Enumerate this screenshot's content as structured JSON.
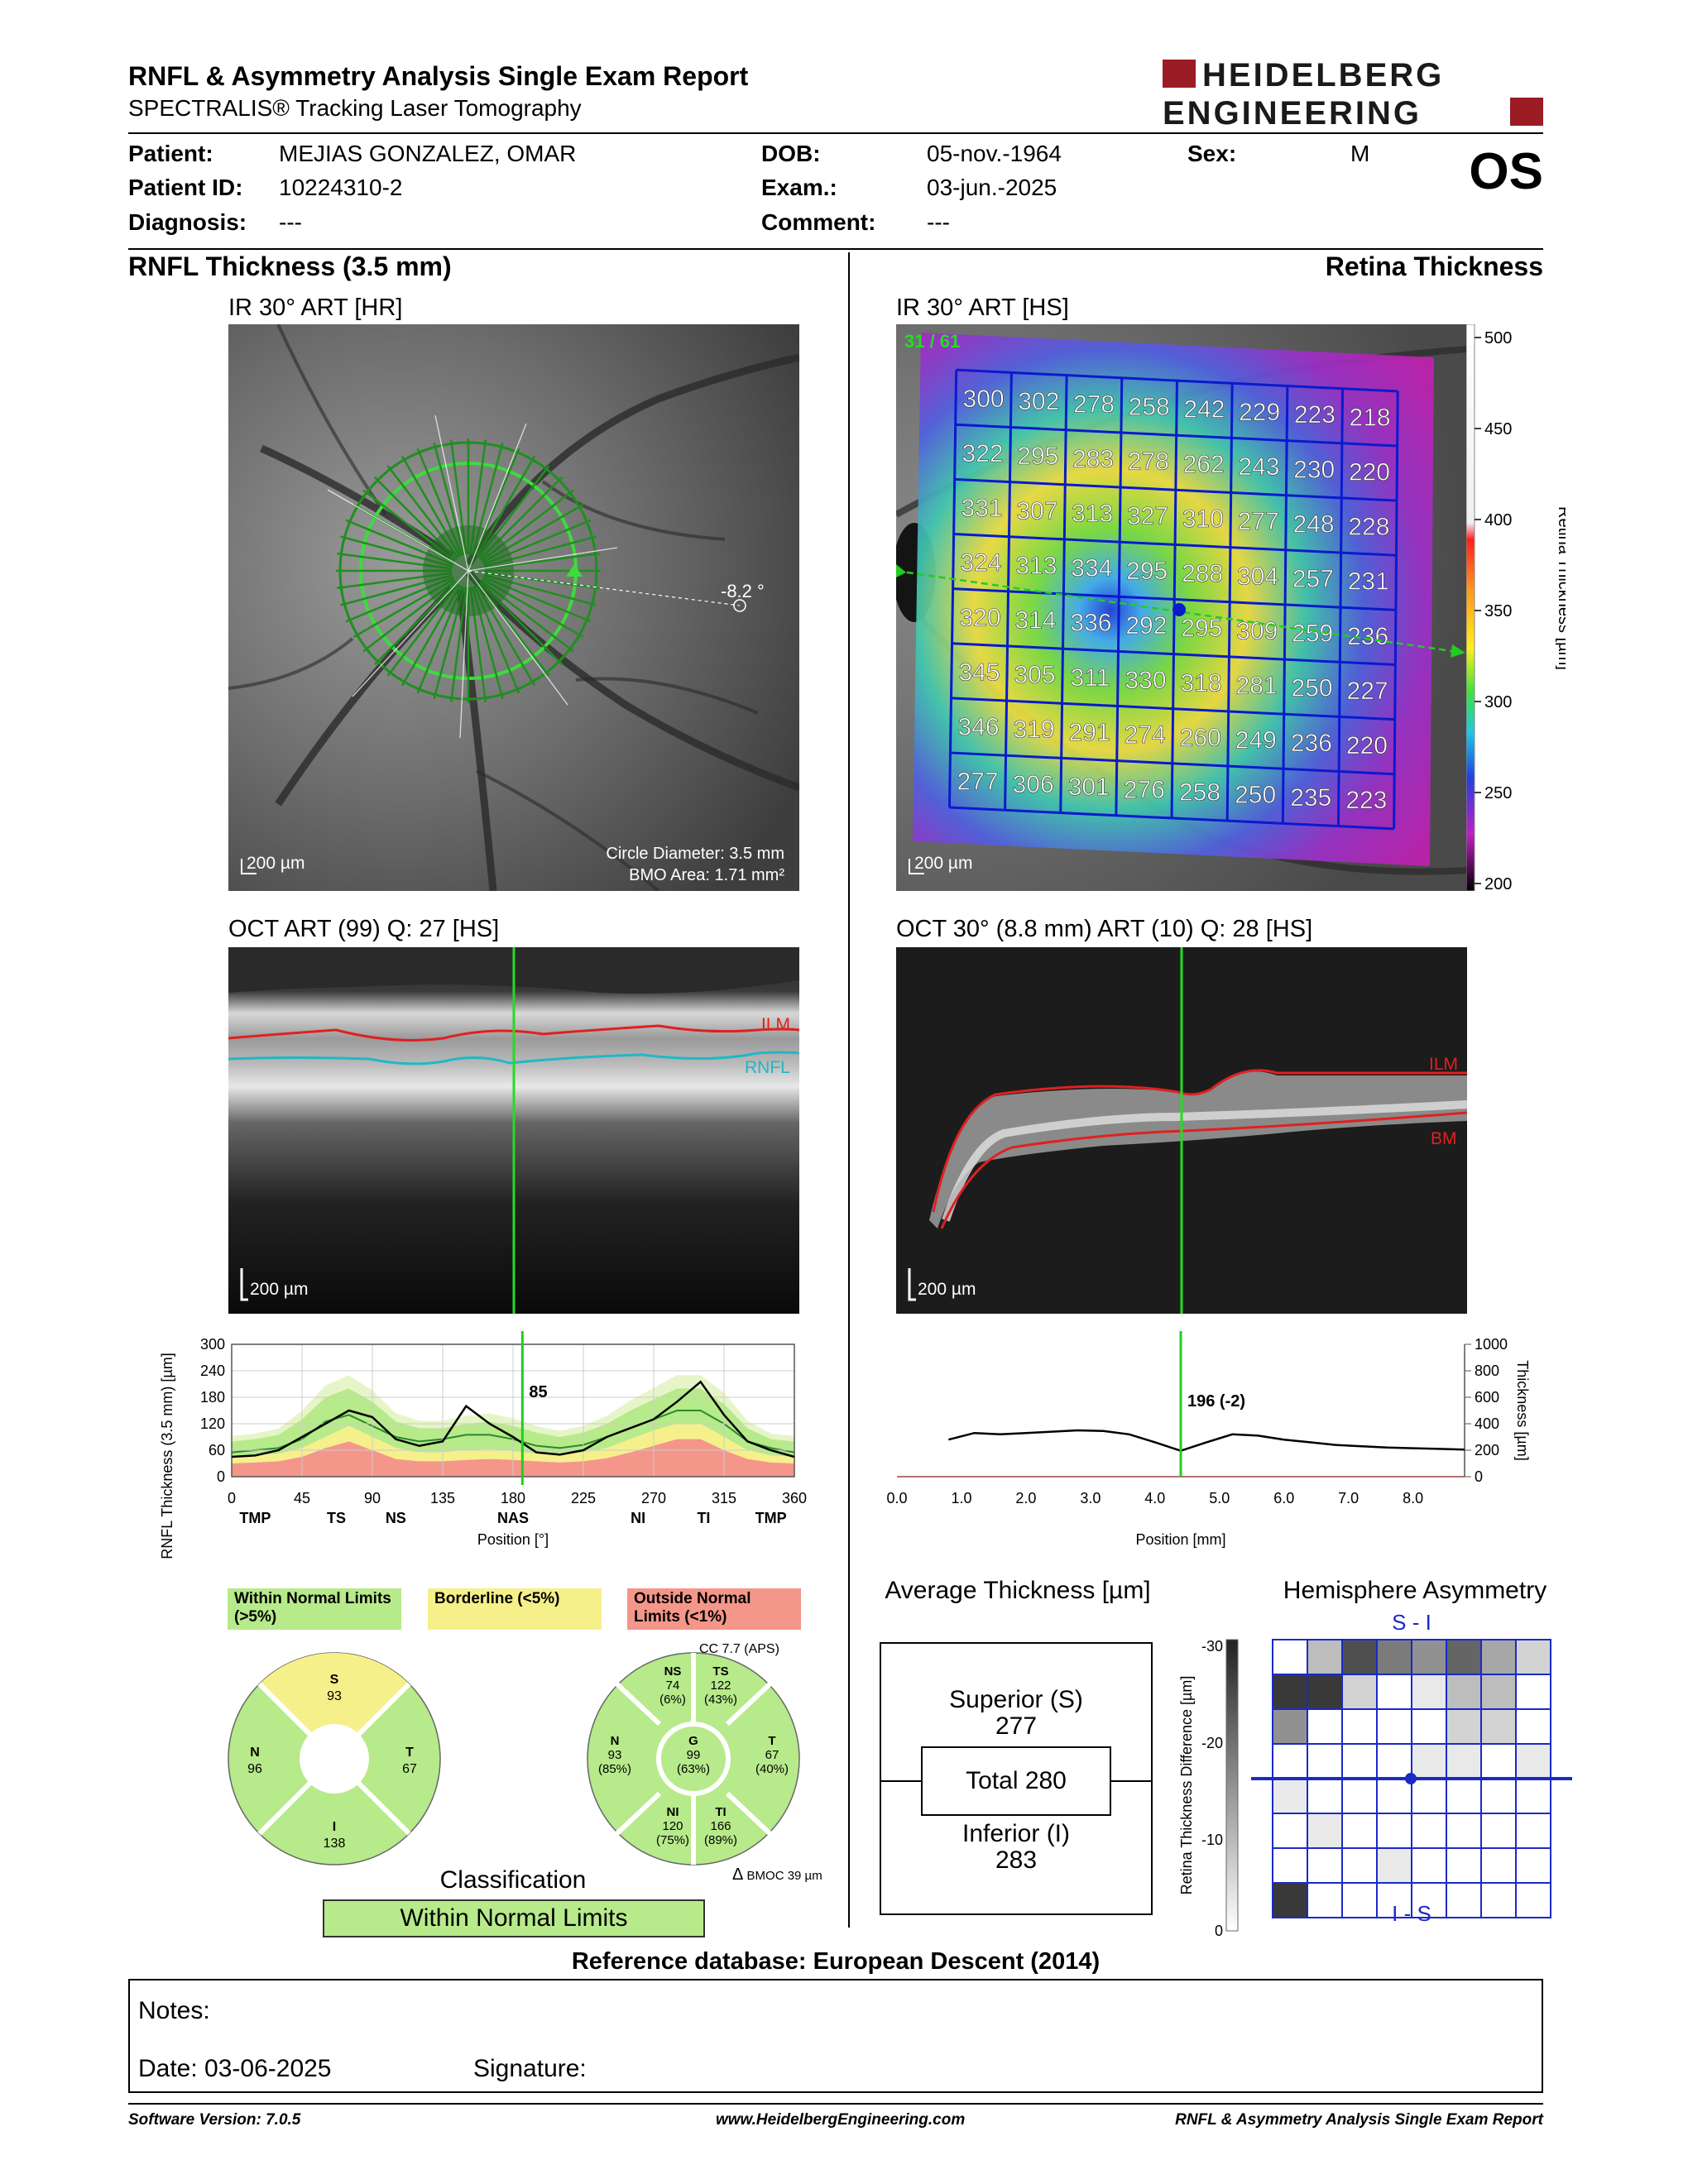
{
  "header": {
    "title": "RNFL & Asymmetry Analysis Single Exam Report",
    "subtitle": "SPECTRALIS® Tracking Laser Tomography",
    "logo_line1": "HEIDELBERG",
    "logo_line2": "ENGINEERING",
    "eye": "OS"
  },
  "patient": {
    "patient_label": "Patient:",
    "patient_value": "MEJIAS GONZALEZ, OMAR",
    "id_label": "Patient ID:",
    "id_value": "10224310-2",
    "diagnosis_label": "Diagnosis:",
    "diagnosis_value": "---",
    "dob_label": "DOB:",
    "dob_value": "05-nov.-1964",
    "exam_label": "Exam.:",
    "exam_value": "03-jun.-2025",
    "comment_label": "Comment:",
    "comment_value": "---",
    "sex_label": "Sex:",
    "sex_value": "M"
  },
  "left": {
    "title": "RNFL Thickness (3.5 mm)",
    "ir_label": "IR 30° ART [HR]",
    "ir_scale": "200 µm",
    "ir_angle": "-8.2 °",
    "circle_diameter": "Circle Diameter: 3.5 mm",
    "bmo_area": "BMO Area: 1.71 mm²",
    "oct_label": "OCT ART (99) Q: 27 [HS]",
    "oct_scale": "200 µm",
    "oct_ilm": "ILM",
    "oct_rnfl": "RNFL",
    "cursor_value": "85",
    "legend_normal": "Within Normal Limits (>5%)",
    "legend_border": "Borderline (<5%)",
    "legend_outside": "Outside Normal Limits (<1%)",
    "cc": "CC 7.7 (APS)",
    "bmo_c": "BMOC 39 µm",
    "classification_label": "Classification",
    "classification_value": "Within Normal Limits"
  },
  "pie1": {
    "S": {
      "label": "S",
      "value": "93"
    },
    "N": {
      "label": "N",
      "value": "96"
    },
    "T": {
      "label": "T",
      "value": "67"
    },
    "I": {
      "label": "I",
      "value": "138"
    }
  },
  "pie2": {
    "NS": {
      "label": "NS",
      "value": "74",
      "pct": "(6%)"
    },
    "TS": {
      "label": "TS",
      "value": "122",
      "pct": "(43%)"
    },
    "N": {
      "label": "N",
      "value": "93",
      "pct": "(85%)"
    },
    "G": {
      "label": "G",
      "value": "99",
      "pct": "(63%)"
    },
    "T": {
      "label": "T",
      "value": "67",
      "pct": "(40%)"
    },
    "NI": {
      "label": "NI",
      "value": "120",
      "pct": "(75%)"
    },
    "TI": {
      "label": "TI",
      "value": "166",
      "pct": "(89%)"
    }
  },
  "right": {
    "title": "Retina Thickness",
    "ir_label": "IR 30° ART [HS]",
    "ir_scale": "200 µm",
    "scan_index": "31 / 61",
    "colorbar_label": "Retina Thickness [µm]",
    "colorbar_ticks": [
      "500",
      "450",
      "400",
      "350",
      "300",
      "250",
      "200"
    ],
    "oct_label": "OCT 30° (8.8 mm) ART (10) Q: 28 [HS]",
    "oct_scale": "200 µm",
    "oct_ilm": "ILM",
    "oct_bm": "BM",
    "cursor_value": "196 (-2)",
    "avg_title": "Average Thickness [µm]",
    "superior_label": "Superior (S)",
    "superior_value": "277",
    "total": "Total 280",
    "inferior_label": "Inferior (I)",
    "inferior_value": "283",
    "asym_title": "Hemisphere Asymmetry",
    "asym_top": "S - I",
    "asym_bottom": "I - S",
    "asym_axis_label": "Retina Thickness Difference [µm]",
    "asym_ticks": [
      "-30",
      "-20",
      "-10",
      "0"
    ]
  },
  "grid_values": [
    [
      "300",
      "302",
      "278",
      "258",
      "242",
      "229",
      "223",
      "218"
    ],
    [
      "322",
      "295",
      "283",
      "278",
      "262",
      "243",
      "230",
      "220"
    ],
    [
      "331",
      "307",
      "313",
      "327",
      "310",
      "277",
      "248",
      "228"
    ],
    [
      "324",
      "313",
      "334",
      "295",
      "288",
      "304",
      "257",
      "231"
    ],
    [
      "320",
      "314",
      "336",
      "292",
      "295",
      "309",
      "259",
      "236"
    ],
    [
      "345",
      "305",
      "311",
      "330",
      "318",
      "281",
      "250",
      "227"
    ],
    [
      "346",
      "319",
      "291",
      "274",
      "260",
      "249",
      "236",
      "220"
    ],
    [
      "277",
      "306",
      "301",
      "276",
      "258",
      "250",
      "235",
      "223"
    ]
  ],
  "asym_grid": [
    [
      0,
      0.3,
      0.8,
      0.6,
      0.5,
      0.7,
      0.4,
      0.2
    ],
    [
      0.9,
      0.9,
      0.2,
      0,
      0.1,
      0.3,
      0.3,
      0
    ],
    [
      0.5,
      0,
      0,
      0,
      0,
      0.2,
      0.2,
      0
    ],
    [
      0,
      0,
      0,
      0,
      0.1,
      0.1,
      0,
      0.1
    ],
    [
      0.1,
      0,
      0,
      0,
      0,
      0,
      0,
      0
    ],
    [
      0,
      0.1,
      0,
      0,
      0,
      0,
      0,
      0
    ],
    [
      0,
      0,
      0,
      0.1,
      0,
      0,
      0,
      0
    ],
    [
      0.9,
      0,
      0,
      0,
      0,
      0,
      0,
      0
    ]
  ],
  "chart_data": [
    {
      "type": "line",
      "xlabel": "Position [°]",
      "ylabel": "RNFL Thickness (3.5 mm) [µm]",
      "xlim": [
        0,
        360
      ],
      "ylim": [
        0,
        300
      ],
      "x_ticks": [
        "0",
        "45",
        "90",
        "135",
        "180",
        "225",
        "270",
        "315",
        "360"
      ],
      "y_ticks": [
        "0",
        "60",
        "120",
        "180",
        "240",
        "300"
      ],
      "sector_labels": [
        "TMP",
        "TS",
        "NS",
        "NAS",
        "NI",
        "TI",
        "TMP"
      ],
      "sector_positions": [
        15,
        67,
        105,
        180,
        260,
        302,
        345
      ],
      "cursor_x": 186,
      "cursor_label": "85",
      "x": [
        0,
        15,
        30,
        45,
        60,
        75,
        90,
        105,
        120,
        135,
        150,
        165,
        180,
        195,
        210,
        225,
        240,
        255,
        270,
        285,
        300,
        315,
        330,
        345,
        360
      ],
      "series": [
        {
          "values": [
            45,
            48,
            60,
            90,
            120,
            150,
            135,
            85,
            70,
            80,
            160,
            120,
            90,
            55,
            50,
            60,
            90,
            110,
            130,
            170,
            215,
            140,
            80,
            60,
            45
          ]
        }
      ],
      "bands": {
        "outside_upper": [
          30,
          32,
          35,
          45,
          65,
          80,
          60,
          40,
          35,
          35,
          38,
          40,
          38,
          35,
          32,
          35,
          42,
          55,
          70,
          85,
          85,
          60,
          40,
          32,
          30
        ],
        "border_upper": [
          45,
          48,
          52,
          65,
          90,
          115,
          90,
          65,
          55,
          55,
          60,
          62,
          58,
          52,
          50,
          55,
          65,
          85,
          105,
          120,
          120,
          90,
          60,
          48,
          45
        ],
        "normal_upper": [
          80,
          85,
          95,
          130,
          180,
          200,
          170,
          125,
          110,
          110,
          120,
          125,
          115,
          100,
          90,
          100,
          120,
          150,
          175,
          200,
          200,
          165,
          110,
          85,
          80
        ],
        "mean": [
          55,
          60,
          65,
          85,
          125,
          140,
          115,
          90,
          80,
          85,
          95,
          95,
          85,
          70,
          65,
          72,
          90,
          110,
          130,
          150,
          150,
          120,
          80,
          65,
          55
        ]
      }
    },
    {
      "type": "line",
      "xlabel": "Position [mm]",
      "ylabel": "Thickness [µm]",
      "xlim": [
        0,
        8.8
      ],
      "ylim": [
        0,
        1000
      ],
      "x_ticks": [
        "0.0",
        "1.0",
        "2.0",
        "3.0",
        "4.0",
        "5.0",
        "6.0",
        "7.0",
        "8.0"
      ],
      "y_ticks": [
        "0",
        "200",
        "400",
        "600",
        "800",
        "1000"
      ],
      "cursor_x": 4.4,
      "cursor_label": "196 (-2)",
      "x": [
        0.8,
        1.2,
        1.6,
        2.0,
        2.4,
        2.8,
        3.2,
        3.6,
        4.0,
        4.4,
        4.8,
        5.2,
        5.6,
        6.0,
        6.4,
        6.8,
        7.2,
        7.6,
        8.0,
        8.4,
        8.8
      ],
      "series": [
        {
          "values": [
            280,
            330,
            320,
            330,
            340,
            350,
            345,
            320,
            260,
            196,
            260,
            320,
            310,
            280,
            260,
            240,
            230,
            220,
            215,
            210,
            205
          ]
        }
      ]
    }
  ]
}
